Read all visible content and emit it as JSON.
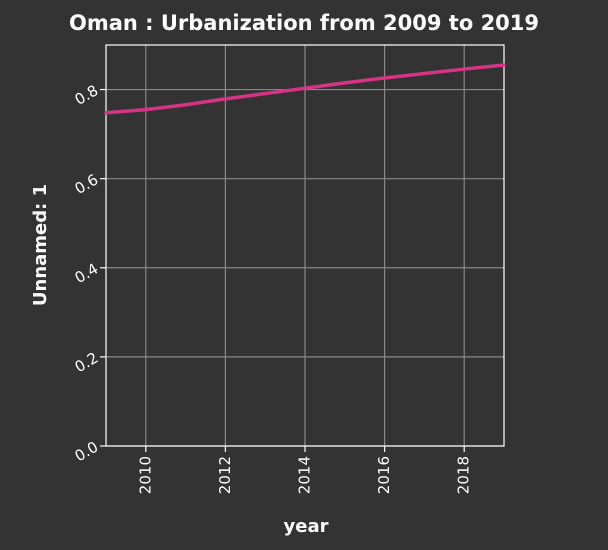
{
  "chart_data": {
    "type": "line",
    "title": "Oman : Urbanization from 2009 to 2019",
    "xlabel": "year",
    "ylabel": "Unnamed: 1",
    "xlim": [
      2009,
      2019
    ],
    "ylim": [
      0.0,
      0.9
    ],
    "x_ticks": [
      2010,
      2012,
      2014,
      2016,
      2018
    ],
    "x_tick_labels": [
      "2010",
      "2012",
      "2014",
      "2016",
      "2018"
    ],
    "y_ticks": [
      0.0,
      0.2,
      0.4,
      0.6,
      0.8
    ],
    "y_tick_labels": [
      "0.0",
      "0.2",
      "0.4",
      "0.6",
      "0.8"
    ],
    "grid": true,
    "series": [
      {
        "x": [
          2009,
          2010,
          2011,
          2012,
          2013,
          2014,
          2015,
          2016,
          2017,
          2018,
          2019
        ],
        "y": [
          0.748,
          0.755,
          0.766,
          0.779,
          0.791,
          0.803,
          0.815,
          0.826,
          0.836,
          0.846,
          0.855
        ],
        "color": "#d63384"
      }
    ],
    "colors": {
      "background": "#333333",
      "grid": "#888888",
      "axis": "#ffffff",
      "text": "#ffffff",
      "line": "#d63384"
    }
  }
}
